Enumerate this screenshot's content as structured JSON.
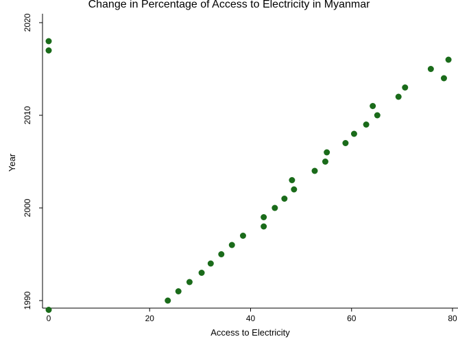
{
  "chart_data": {
    "type": "scatter",
    "title": "Change in Percentage of Access to Electricity in Myanmar",
    "xlabel": "Access to Electricity",
    "ylabel": "Year",
    "xlim": [
      0,
      80
    ],
    "ylim": [
      1989,
      2020
    ],
    "xticks": [
      0,
      20,
      40,
      60,
      80
    ],
    "yticks": [
      1990,
      2000,
      2010,
      2020
    ],
    "grid": false,
    "marker_color": "#1a6b1a",
    "points": [
      {
        "x": 0,
        "y": 1989
      },
      {
        "x": 23.6,
        "y": 1990
      },
      {
        "x": 25.7,
        "y": 1991
      },
      {
        "x": 27.9,
        "y": 1992
      },
      {
        "x": 30.3,
        "y": 1993
      },
      {
        "x": 32.1,
        "y": 1994
      },
      {
        "x": 34.2,
        "y": 1995
      },
      {
        "x": 36.3,
        "y": 1996
      },
      {
        "x": 38.5,
        "y": 1997
      },
      {
        "x": 42.6,
        "y": 1998
      },
      {
        "x": 42.6,
        "y": 1999
      },
      {
        "x": 44.8,
        "y": 2000
      },
      {
        "x": 46.7,
        "y": 2001
      },
      {
        "x": 48.6,
        "y": 2002
      },
      {
        "x": 48.2,
        "y": 2003
      },
      {
        "x": 52.7,
        "y": 2004
      },
      {
        "x": 54.8,
        "y": 2005
      },
      {
        "x": 55.1,
        "y": 2006
      },
      {
        "x": 58.8,
        "y": 2007
      },
      {
        "x": 60.5,
        "y": 2008
      },
      {
        "x": 62.9,
        "y": 2009
      },
      {
        "x": 65.1,
        "y": 2010
      },
      {
        "x": 64.2,
        "y": 2011
      },
      {
        "x": 69.3,
        "y": 2012
      },
      {
        "x": 70.6,
        "y": 2013
      },
      {
        "x": 78.3,
        "y": 2014
      },
      {
        "x": 75.7,
        "y": 2015
      },
      {
        "x": 79.2,
        "y": 2016
      },
      {
        "x": 0,
        "y": 2017
      },
      {
        "x": 0,
        "y": 2018
      }
    ]
  }
}
